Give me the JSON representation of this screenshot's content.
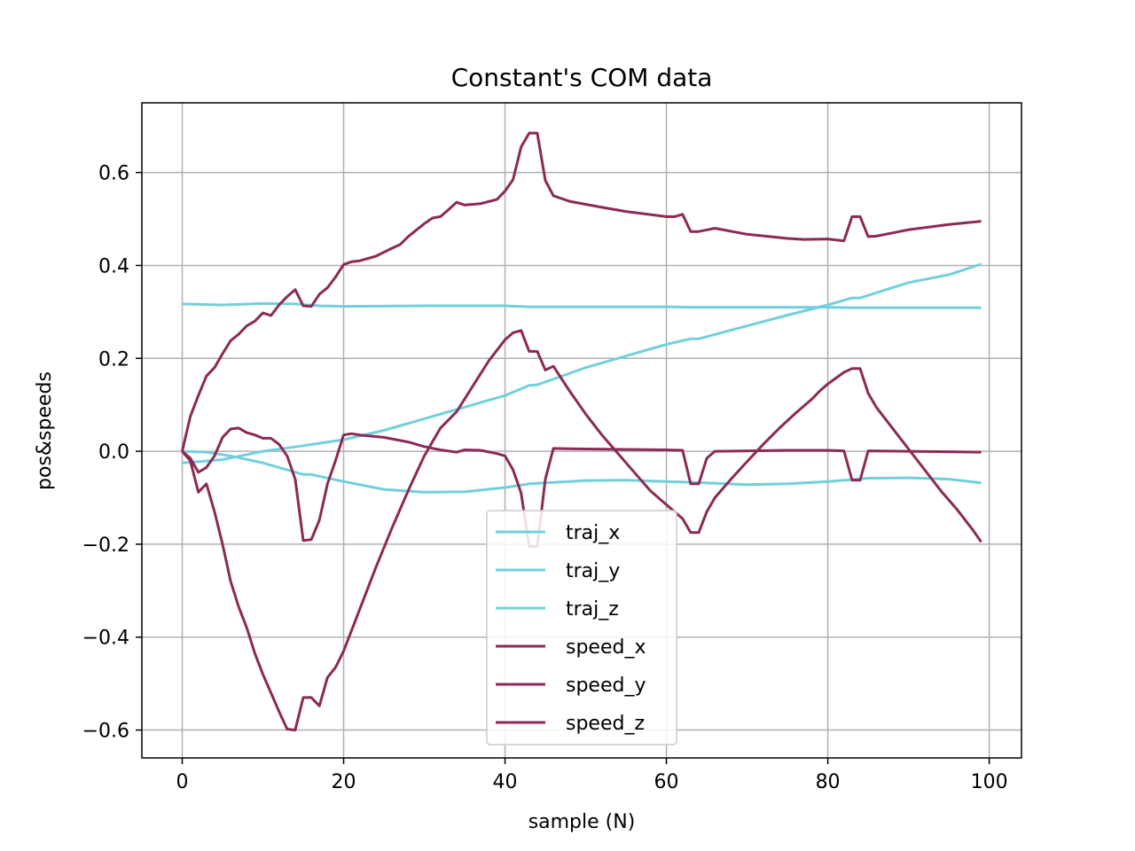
{
  "chart_data": {
    "type": "line",
    "title": "Constant's COM data",
    "xlabel": "sample (N)",
    "ylabel": "pos&speeds",
    "xlim": [
      -5,
      104
    ],
    "ylim": [
      -0.66,
      0.75
    ],
    "xticks": [
      0,
      20,
      40,
      60,
      80,
      100
    ],
    "xtick_labels": [
      "0",
      "20",
      "40",
      "60",
      "80",
      "100"
    ],
    "yticks": [
      -0.6,
      -0.4,
      -0.2,
      0.0,
      0.2,
      0.4,
      0.6
    ],
    "ytick_labels": [
      "−0.6",
      "−0.4",
      "−0.2",
      "0.0",
      "0.2",
      "0.4",
      "0.6"
    ],
    "grid": true,
    "legend_position": "lower center",
    "colors": {
      "traj": "#72d0dc",
      "speed": "#8b2a55"
    },
    "series": [
      {
        "name": "traj_x",
        "color": "#72d0dc",
        "points": [
          [
            0,
            -0.025
          ],
          [
            5,
            -0.018
          ],
          [
            10,
            0
          ],
          [
            15,
            0.012
          ],
          [
            20,
            0.025
          ],
          [
            25,
            0.045
          ],
          [
            30,
            0.07
          ],
          [
            35,
            0.095
          ],
          [
            40,
            0.12
          ],
          [
            43,
            0.142
          ],
          [
            44,
            0.143
          ],
          [
            50,
            0.18
          ],
          [
            55,
            0.205
          ],
          [
            60,
            0.23
          ],
          [
            63,
            0.242
          ],
          [
            64,
            0.242
          ],
          [
            70,
            0.27
          ],
          [
            75,
            0.293
          ],
          [
            80,
            0.315
          ],
          [
            83,
            0.33
          ],
          [
            84,
            0.33
          ],
          [
            90,
            0.363
          ],
          [
            95,
            0.38
          ],
          [
            99,
            0.403
          ]
        ]
      },
      {
        "name": "traj_y",
        "color": "#72d0dc",
        "points": [
          [
            0,
            0.0
          ],
          [
            3,
            -0.002
          ],
          [
            6,
            -0.01
          ],
          [
            10,
            -0.025
          ],
          [
            15,
            -0.05
          ],
          [
            16,
            -0.05
          ],
          [
            20,
            -0.065
          ],
          [
            25,
            -0.082
          ],
          [
            30,
            -0.088
          ],
          [
            35,
            -0.087
          ],
          [
            40,
            -0.078
          ],
          [
            43,
            -0.07
          ],
          [
            50,
            -0.063
          ],
          [
            55,
            -0.062
          ],
          [
            60,
            -0.065
          ],
          [
            65,
            -0.068
          ],
          [
            70,
            -0.072
          ],
          [
            75,
            -0.07
          ],
          [
            80,
            -0.065
          ],
          [
            85,
            -0.058
          ],
          [
            90,
            -0.057
          ],
          [
            95,
            -0.06
          ],
          [
            99,
            -0.068
          ]
        ]
      },
      {
        "name": "traj_z",
        "color": "#72d0dc",
        "points": [
          [
            0,
            0.317
          ],
          [
            5,
            0.315
          ],
          [
            10,
            0.318
          ],
          [
            14,
            0.317
          ],
          [
            17,
            0.313
          ],
          [
            20,
            0.312
          ],
          [
            30,
            0.313
          ],
          [
            40,
            0.313
          ],
          [
            43,
            0.311
          ],
          [
            50,
            0.311
          ],
          [
            60,
            0.311
          ],
          [
            63,
            0.31
          ],
          [
            70,
            0.31
          ],
          [
            80,
            0.31
          ],
          [
            83,
            0.309
          ],
          [
            90,
            0.309
          ],
          [
            99,
            0.309
          ]
        ]
      },
      {
        "name": "speed_x",
        "color": "#8b2a55",
        "points": [
          [
            0,
            0
          ],
          [
            1,
            0.075
          ],
          [
            2,
            0.12
          ],
          [
            3,
            0.162
          ],
          [
            4,
            0.18
          ],
          [
            5,
            0.21
          ],
          [
            6,
            0.238
          ],
          [
            7,
            0.252
          ],
          [
            8,
            0.27
          ],
          [
            9,
            0.28
          ],
          [
            10,
            0.298
          ],
          [
            11,
            0.292
          ],
          [
            12,
            0.315
          ],
          [
            13,
            0.333
          ],
          [
            14,
            0.348
          ],
          [
            15,
            0.313
          ],
          [
            16,
            0.312
          ],
          [
            17,
            0.338
          ],
          [
            18,
            0.352
          ],
          [
            19,
            0.375
          ],
          [
            20,
            0.402
          ],
          [
            21,
            0.408
          ],
          [
            22,
            0.41
          ],
          [
            24,
            0.42
          ],
          [
            26,
            0.437
          ],
          [
            27,
            0.445
          ],
          [
            28,
            0.462
          ],
          [
            30,
            0.49
          ],
          [
            31,
            0.502
          ],
          [
            32,
            0.505
          ],
          [
            33,
            0.52
          ],
          [
            34,
            0.536
          ],
          [
            35,
            0.53
          ],
          [
            37,
            0.533
          ],
          [
            39,
            0.542
          ],
          [
            40,
            0.56
          ],
          [
            41,
            0.585
          ],
          [
            42,
            0.655
          ],
          [
            43,
            0.685
          ],
          [
            44,
            0.685
          ],
          [
            45,
            0.583
          ],
          [
            46,
            0.55
          ],
          [
            48,
            0.538
          ],
          [
            52,
            0.525
          ],
          [
            55,
            0.516
          ],
          [
            60,
            0.505
          ],
          [
            61,
            0.505
          ],
          [
            62,
            0.51
          ],
          [
            63,
            0.473
          ],
          [
            64,
            0.473
          ],
          [
            66,
            0.48
          ],
          [
            70,
            0.467
          ],
          [
            75,
            0.458
          ],
          [
            77,
            0.456
          ],
          [
            80,
            0.457
          ],
          [
            82,
            0.453
          ],
          [
            83,
            0.505
          ],
          [
            84,
            0.505
          ],
          [
            85,
            0.462
          ],
          [
            86,
            0.463
          ],
          [
            88,
            0.47
          ],
          [
            90,
            0.477
          ],
          [
            95,
            0.488
          ],
          [
            99,
            0.495
          ]
        ]
      },
      {
        "name": "speed_y",
        "color": "#8b2a55",
        "points": [
          [
            0,
            0
          ],
          [
            1,
            -0.02
          ],
          [
            2,
            -0.088
          ],
          [
            3,
            -0.07
          ],
          [
            4,
            -0.13
          ],
          [
            5,
            -0.2
          ],
          [
            6,
            -0.28
          ],
          [
            7,
            -0.335
          ],
          [
            8,
            -0.38
          ],
          [
            9,
            -0.435
          ],
          [
            10,
            -0.48
          ],
          [
            11,
            -0.52
          ],
          [
            12,
            -0.56
          ],
          [
            13,
            -0.598
          ],
          [
            14,
            -0.6
          ],
          [
            15,
            -0.53
          ],
          [
            16,
            -0.53
          ],
          [
            17,
            -0.548
          ],
          [
            18,
            -0.487
          ],
          [
            19,
            -0.465
          ],
          [
            20,
            -0.43
          ],
          [
            22,
            -0.34
          ],
          [
            24,
            -0.25
          ],
          [
            26,
            -0.165
          ],
          [
            28,
            -0.085
          ],
          [
            30,
            -0.01
          ],
          [
            32,
            0.05
          ],
          [
            34,
            0.085
          ],
          [
            36,
            0.14
          ],
          [
            38,
            0.195
          ],
          [
            40,
            0.24
          ],
          [
            41,
            0.255
          ],
          [
            42,
            0.26
          ],
          [
            43,
            0.215
          ],
          [
            44,
            0.215
          ],
          [
            45,
            0.175
          ],
          [
            46,
            0.183
          ],
          [
            48,
            0.13
          ],
          [
            50,
            0.08
          ],
          [
            52,
            0.035
          ],
          [
            54,
            -0.005
          ],
          [
            56,
            -0.045
          ],
          [
            58,
            -0.085
          ],
          [
            60,
            -0.115
          ],
          [
            62,
            -0.145
          ],
          [
            63,
            -0.175
          ],
          [
            64,
            -0.175
          ],
          [
            65,
            -0.13
          ],
          [
            66,
            -0.1
          ],
          [
            68,
            -0.06
          ],
          [
            70,
            -0.022
          ],
          [
            72,
            0.015
          ],
          [
            74,
            0.05
          ],
          [
            76,
            0.082
          ],
          [
            78,
            0.112
          ],
          [
            79,
            0.13
          ],
          [
            80,
            0.145
          ],
          [
            82,
            0.17
          ],
          [
            83,
            0.178
          ],
          [
            84,
            0.178
          ],
          [
            85,
            0.125
          ],
          [
            86,
            0.095
          ],
          [
            88,
            0.05
          ],
          [
            90,
            0.005
          ],
          [
            92,
            -0.04
          ],
          [
            94,
            -0.085
          ],
          [
            96,
            -0.125
          ],
          [
            98,
            -0.17
          ],
          [
            99,
            -0.195
          ]
        ]
      },
      {
        "name": "speed_z",
        "color": "#8b2a55",
        "points": [
          [
            0,
            0
          ],
          [
            1,
            -0.015
          ],
          [
            2,
            -0.045
          ],
          [
            3,
            -0.035
          ],
          [
            4,
            -0.01
          ],
          [
            5,
            0.03
          ],
          [
            6,
            0.048
          ],
          [
            7,
            0.05
          ],
          [
            8,
            0.04
          ],
          [
            9,
            0.035
          ],
          [
            10,
            0.028
          ],
          [
            11,
            0.028
          ],
          [
            12,
            0.015
          ],
          [
            13,
            -0.01
          ],
          [
            14,
            -0.06
          ],
          [
            15,
            -0.192
          ],
          [
            16,
            -0.19
          ],
          [
            17,
            -0.148
          ],
          [
            18,
            -0.07
          ],
          [
            19,
            -0.02
          ],
          [
            20,
            0.035
          ],
          [
            21,
            0.038
          ],
          [
            22,
            0.035
          ],
          [
            25,
            0.03
          ],
          [
            28,
            0.02
          ],
          [
            30,
            0.01
          ],
          [
            32,
            0.003
          ],
          [
            34,
            -0.002
          ],
          [
            35,
            0.003
          ],
          [
            37,
            0.002
          ],
          [
            39,
            -0.005
          ],
          [
            40,
            -0.01
          ],
          [
            41,
            -0.04
          ],
          [
            42,
            -0.09
          ],
          [
            43,
            -0.205
          ],
          [
            44,
            -0.205
          ],
          [
            45,
            -0.06
          ],
          [
            46,
            0.006
          ],
          [
            50,
            0.005
          ],
          [
            55,
            0.004
          ],
          [
            60,
            0.003
          ],
          [
            62,
            0.002
          ],
          [
            63,
            -0.07
          ],
          [
            64,
            -0.07
          ],
          [
            65,
            -0.015
          ],
          [
            66,
            0
          ],
          [
            70,
            0.001
          ],
          [
            75,
            0.002
          ],
          [
            80,
            0.002
          ],
          [
            82,
            0.001
          ],
          [
            83,
            -0.062
          ],
          [
            84,
            -0.062
          ],
          [
            85,
            0.001
          ],
          [
            90,
            0
          ],
          [
            95,
            -0.001
          ],
          [
            99,
            -0.002
          ]
        ]
      }
    ]
  }
}
